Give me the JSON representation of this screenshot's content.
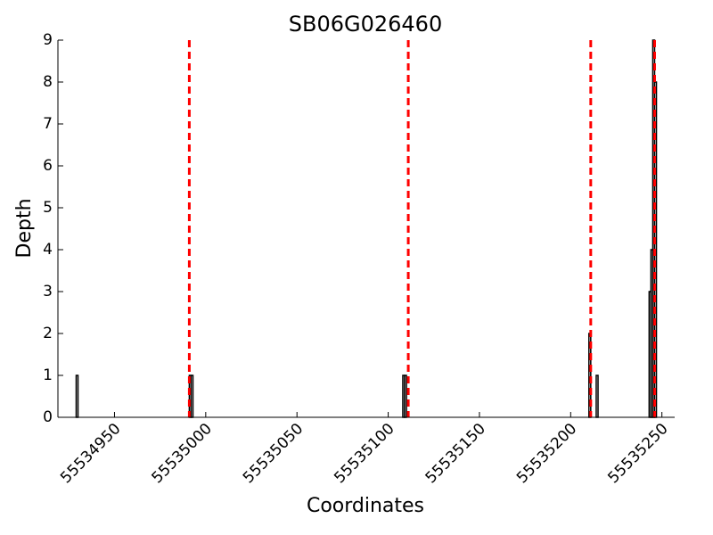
{
  "chart_data": {
    "type": "bar",
    "title": "SB06G026460",
    "xlabel": "Coordinates",
    "ylabel": "Depth",
    "x": [
      55534929,
      55534991,
      55534992,
      55535108,
      55535109,
      55535210,
      55535214,
      55535243,
      55535244,
      55535245,
      55535246
    ],
    "values": [
      1,
      1,
      1,
      1,
      1,
      2,
      1,
      3,
      4,
      9,
      8
    ],
    "color": "#000000",
    "vlines": [
      55534991,
      55535111,
      55535211,
      55535246
    ],
    "vline_color": "#ff0000",
    "xlim": [
      55534919,
      55535257
    ],
    "xticks": [
      55534950,
      55535000,
      55535050,
      55535100,
      55535150,
      55535200,
      55535250
    ],
    "ylim": [
      0,
      9
    ],
    "yticks": [
      0,
      1,
      2,
      3,
      4,
      5,
      6,
      7,
      8,
      9
    ]
  }
}
